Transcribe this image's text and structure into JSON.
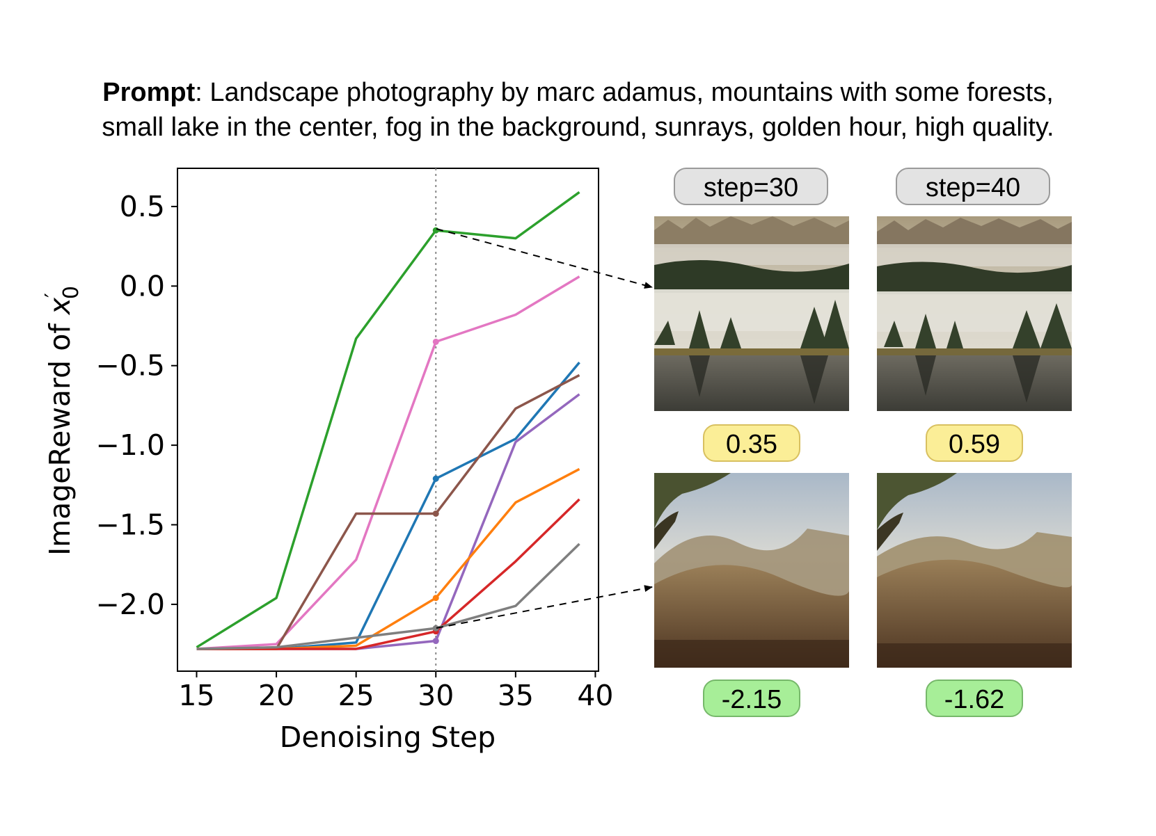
{
  "prompt": {
    "label": "Prompt",
    "text": ": Landscape photography by marc adamus, mountains with some forests,",
    "text_line2": "small lake in the center, fog in the background, sunrays, golden hour, high quality."
  },
  "chart_data": {
    "type": "line",
    "title": "",
    "xlabel": "Denoising Step",
    "ylabel": "ImageReward of x′₀",
    "ylabel_main": "ImageReward of ",
    "ylabel_var": "x",
    "ylabel_prime": "′",
    "ylabel_sub": "0",
    "xlim": [
      13.8,
      40.2
    ],
    "ylim": [
      -2.42,
      0.74
    ],
    "xticks": [
      15,
      20,
      25,
      30,
      35,
      40
    ],
    "xtick_labels": [
      "15",
      "20",
      "25",
      "30",
      "35",
      "40"
    ],
    "yticks": [
      0.5,
      0.0,
      -0.5,
      -1.0,
      -1.5,
      -2.0
    ],
    "ytick_labels": [
      "0.5",
      "0.0",
      "−0.5",
      "−1.0",
      "−1.5",
      "−2.0"
    ],
    "x": [
      15,
      20,
      25,
      30,
      35,
      39
    ],
    "vline_x": 30,
    "series": [
      {
        "color": "#2ca02c",
        "values": [
          -2.27,
          -1.96,
          -0.33,
          0.35,
          0.3,
          0.59
        ]
      },
      {
        "color": "#e377c2",
        "values": [
          -2.28,
          -2.25,
          -1.72,
          -0.35,
          -0.18,
          0.06
        ]
      },
      {
        "color": "#1f77b4",
        "values": [
          -2.28,
          -2.28,
          -2.24,
          -1.21,
          -0.96,
          -0.48
        ]
      },
      {
        "color": "#8c564b",
        "values": [
          -2.28,
          -2.28,
          -1.43,
          -1.43,
          -0.77,
          -0.56
        ]
      },
      {
        "color": "#9467bd",
        "values": [
          -2.28,
          -2.28,
          -2.28,
          -2.23,
          -0.98,
          -0.68
        ]
      },
      {
        "color": "#ff7f0e",
        "values": [
          -2.28,
          -2.28,
          -2.26,
          -1.96,
          -1.36,
          -1.15
        ]
      },
      {
        "color": "#d62728",
        "values": [
          -2.28,
          -2.28,
          -2.28,
          -2.17,
          -1.73,
          -1.34
        ]
      },
      {
        "color": "#7f7f7f",
        "values": [
          -2.28,
          -2.27,
          -2.21,
          -2.15,
          -2.01,
          -1.62
        ]
      }
    ]
  },
  "panels": {
    "step_labels": [
      "step=30",
      "step=40"
    ],
    "top_scores": [
      "0.35",
      "0.59"
    ],
    "bottom_scores": [
      "-2.15",
      "-1.62"
    ],
    "colors": {
      "score_high_fill": "#fbee97",
      "score_low_fill": "#a7ee98",
      "step_fill": "#e3e3e3"
    }
  }
}
